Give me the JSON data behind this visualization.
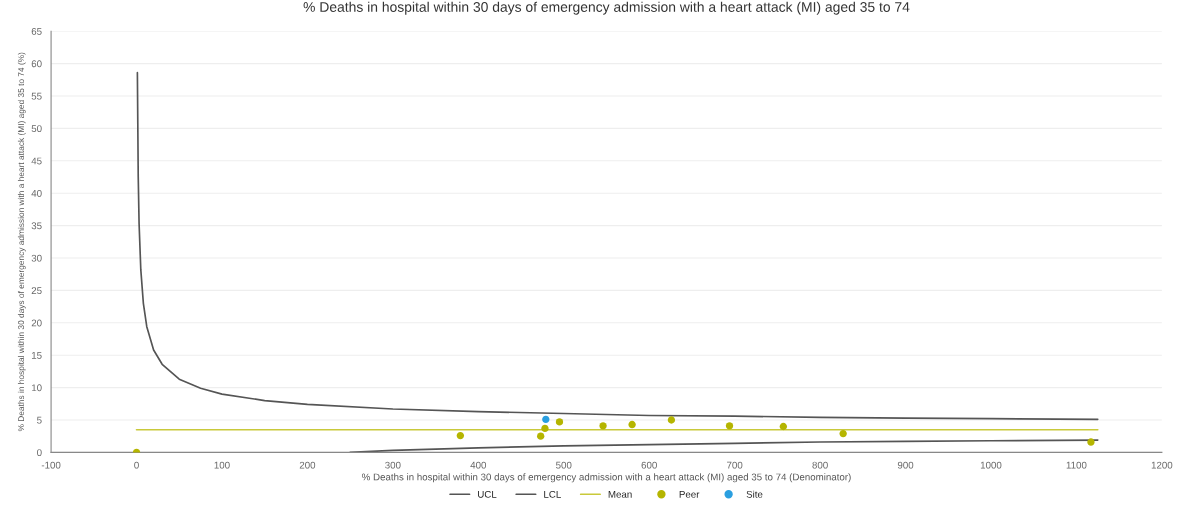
{
  "chart_data": {
    "type": "line",
    "title": "% Deaths in hospital within 30 days of emergency admission with a heart attack (MI) aged 35 to 74",
    "xlabel": "% Deaths in hospital within 30 days of emergency admission with a heart attack (MI) aged 35 to 74 (Denominator)",
    "ylabel": "% Deaths in hospital within 30 days of emergency admission with a heart attack (MI) aged 35 to 74 (%)",
    "xlim": [
      -100,
      1200
    ],
    "xticks": [
      -100,
      0,
      100,
      200,
      300,
      400,
      500,
      600,
      700,
      800,
      900,
      1000,
      1100,
      1200
    ],
    "ylim": [
      0,
      65
    ],
    "yticks": [
      0,
      5,
      10,
      15,
      20,
      25,
      30,
      35,
      40,
      45,
      50,
      55,
      60,
      65
    ],
    "grid": "y",
    "legend": "bottom",
    "series": [
      {
        "name": "UCL",
        "color": "#555555",
        "marker": "none",
        "x": [
          1,
          2,
          3,
          5,
          8,
          12,
          20,
          30,
          50,
          75,
          100,
          150,
          200,
          300,
          400,
          500,
          600,
          700,
          800,
          900,
          1000,
          1125
        ],
        "values": [
          58.6,
          42.5,
          35.3,
          28.2,
          23.0,
          19.4,
          15.8,
          13.6,
          11.3,
          9.9,
          9.0,
          8.0,
          7.4,
          6.7,
          6.3,
          6.0,
          5.7,
          5.6,
          5.4,
          5.3,
          5.2,
          5.1
        ]
      },
      {
        "name": "LCL",
        "color": "#555555",
        "marker": "none",
        "x": [
          250,
          300,
          400,
          500,
          600,
          700,
          800,
          900,
          1000,
          1125
        ],
        "values": [
          0.0,
          0.3,
          0.7,
          1.0,
          1.2,
          1.4,
          1.6,
          1.7,
          1.8,
          1.9
        ]
      },
      {
        "name": "Mean",
        "color": "#c9c93a",
        "marker": "none",
        "x": [
          0,
          1125
        ],
        "values": [
          3.5,
          3.5
        ]
      },
      {
        "name": "Peer",
        "type": "scatter",
        "color": "#b5b500",
        "marker": "circle",
        "x": [
          0,
          379,
          473,
          478,
          495,
          546,
          580,
          626,
          694,
          757,
          827,
          1117
        ],
        "values": [
          0,
          2.6,
          2.5,
          3.7,
          4.7,
          4.1,
          4.3,
          5.0,
          4.1,
          4.0,
          2.9,
          1.6
        ]
      },
      {
        "name": "Site",
        "type": "scatter",
        "color": "#2a9fe0",
        "marker": "circle",
        "x": [
          479
        ],
        "values": [
          5.1
        ]
      }
    ]
  }
}
